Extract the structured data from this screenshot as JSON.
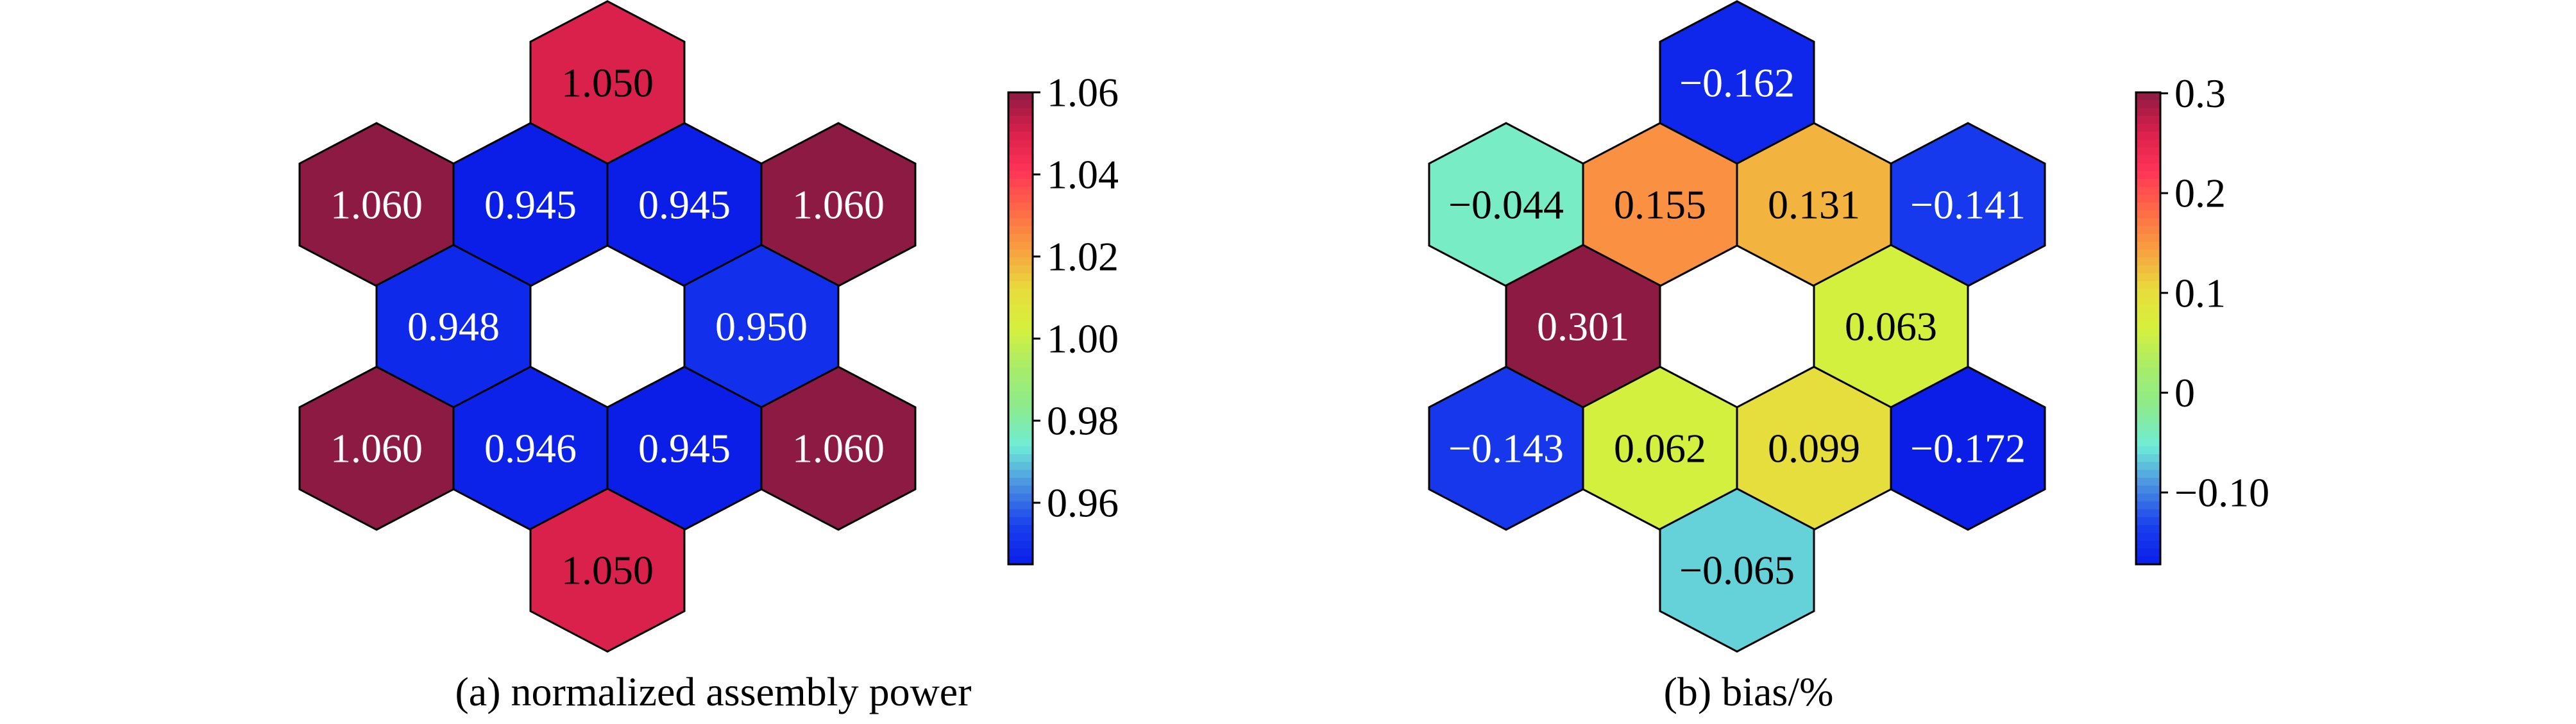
{
  "colormap": [
    "#0a1ee8",
    "#1a40ee",
    "#4a90e0",
    "#70ecd8",
    "#8ceb8c",
    "#a8ec6a",
    "#d6f03c",
    "#e8dc3c",
    "#f8a040",
    "#ff6a48",
    "#ff3356",
    "#d8204c",
    "#8c1a42"
  ],
  "hex_edge_color": "#000000",
  "chart_data": [
    {
      "type": "heatmap",
      "layout": "hexagonal",
      "caption": "(a) normalized assembly power",
      "colorbar": {
        "vmin": 0.945,
        "vmax": 1.06,
        "ticks": [
          0.96,
          0.98,
          1.0,
          1.02,
          1.04,
          1.06
        ],
        "tick_labels": [
          "0.96",
          "0.98",
          "1.00",
          "1.02",
          "1.04",
          "1.06"
        ]
      },
      "cells": [
        {
          "row": 0,
          "col": 0,
          "value": 1.05,
          "label": "1.050",
          "label_color": "#000000"
        },
        {
          "row": 1,
          "col": -3,
          "value": 1.06,
          "label": "1.060",
          "label_color": "#ffffff"
        },
        {
          "row": 1,
          "col": -1,
          "value": 0.945,
          "label": "0.945",
          "label_color": "#ffffff"
        },
        {
          "row": 1,
          "col": 1,
          "value": 0.945,
          "label": "0.945",
          "label_color": "#ffffff"
        },
        {
          "row": 1,
          "col": 3,
          "value": 1.06,
          "label": "1.060",
          "label_color": "#ffffff"
        },
        {
          "row": 2,
          "col": -2,
          "value": 0.948,
          "label": "0.948",
          "label_color": "#ffffff"
        },
        {
          "row": 2,
          "col": 2,
          "value": 0.95,
          "label": "0.950",
          "label_color": "#ffffff"
        },
        {
          "row": 3,
          "col": -3,
          "value": 1.06,
          "label": "1.060",
          "label_color": "#ffffff"
        },
        {
          "row": 3,
          "col": -1,
          "value": 0.946,
          "label": "0.946",
          "label_color": "#ffffff"
        },
        {
          "row": 3,
          "col": 1,
          "value": 0.945,
          "label": "0.945",
          "label_color": "#ffffff"
        },
        {
          "row": 3,
          "col": 3,
          "value": 1.06,
          "label": "1.060",
          "label_color": "#ffffff"
        },
        {
          "row": 4,
          "col": 0,
          "value": 1.05,
          "label": "1.050",
          "label_color": "#000000"
        }
      ]
    },
    {
      "type": "heatmap",
      "layout": "hexagonal",
      "caption": "(b) bias/%",
      "colorbar": {
        "vmin": -0.172,
        "vmax": 0.301,
        "ticks": [
          -0.1,
          0,
          0.1,
          0.2,
          0.3
        ],
        "tick_labels": [
          "−0.10",
          "0",
          "0.1",
          "0.2",
          "0.3"
        ]
      },
      "cells": [
        {
          "row": 0,
          "col": 0,
          "value": -0.162,
          "label": "−0.162",
          "label_color": "#ffffff"
        },
        {
          "row": 1,
          "col": -3,
          "value": -0.044,
          "label": "−0.044",
          "label_color": "#000000"
        },
        {
          "row": 1,
          "col": -1,
          "value": 0.155,
          "label": "0.155",
          "label_color": "#000000"
        },
        {
          "row": 1,
          "col": 1,
          "value": 0.131,
          "label": "0.131",
          "label_color": "#000000"
        },
        {
          "row": 1,
          "col": 3,
          "value": -0.141,
          "label": "−0.141",
          "label_color": "#ffffff"
        },
        {
          "row": 2,
          "col": -2,
          "value": 0.301,
          "label": "0.301",
          "label_color": "#ffffff"
        },
        {
          "row": 2,
          "col": 2,
          "value": 0.063,
          "label": "0.063",
          "label_color": "#000000"
        },
        {
          "row": 3,
          "col": -3,
          "value": -0.143,
          "label": "−0.143",
          "label_color": "#ffffff"
        },
        {
          "row": 3,
          "col": -1,
          "value": 0.062,
          "label": "0.062",
          "label_color": "#000000"
        },
        {
          "row": 3,
          "col": 1,
          "value": 0.099,
          "label": "0.099",
          "label_color": "#000000"
        },
        {
          "row": 3,
          "col": 3,
          "value": -0.172,
          "label": "−0.172",
          "label_color": "#ffffff"
        },
        {
          "row": 4,
          "col": 0,
          "value": -0.065,
          "label": "−0.065",
          "label_color": "#000000"
        }
      ]
    }
  ]
}
